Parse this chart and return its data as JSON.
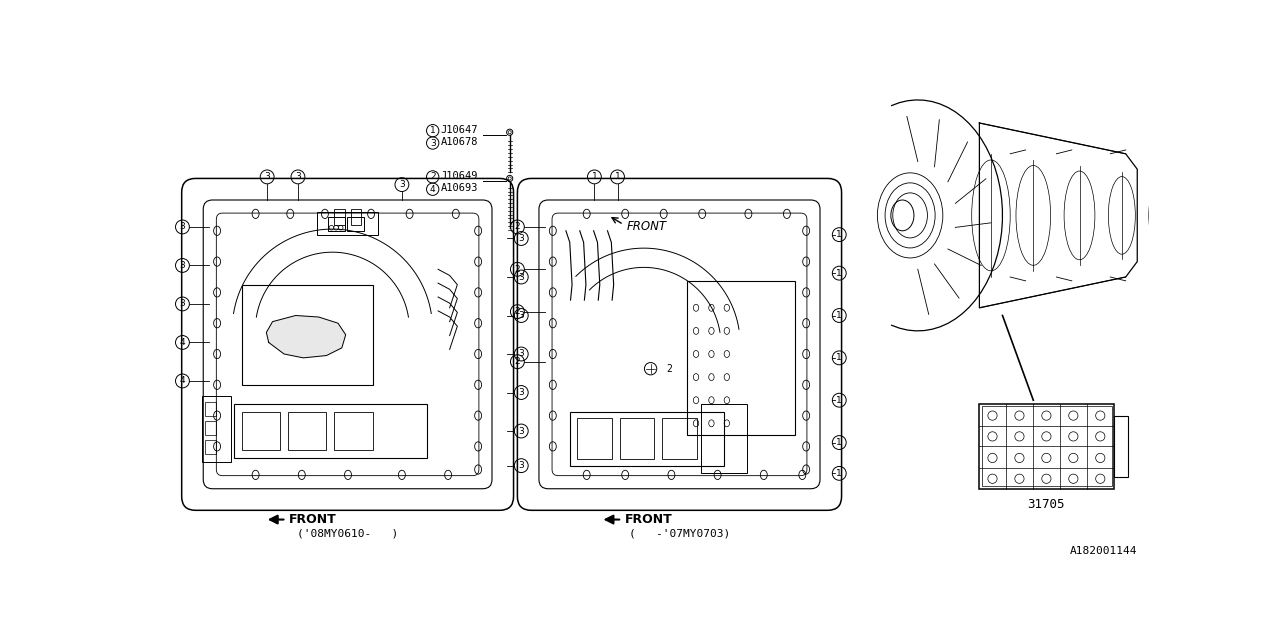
{
  "bg_color": "#ffffff",
  "fig_width": 12.8,
  "fig_height": 6.4,
  "ref_num": "A182001144",
  "part_num": "31705",
  "bolt1_labels": [
    "1 J10647",
    "3 A10678"
  ],
  "bolt2_labels": [
    "2 J10649",
    "4 A10693"
  ],
  "front_italic": "FRONT",
  "bottom_label_left": "('08MY0610-   )",
  "bottom_label_right": "(   -'07MY0703)",
  "front_label": "FRONT"
}
